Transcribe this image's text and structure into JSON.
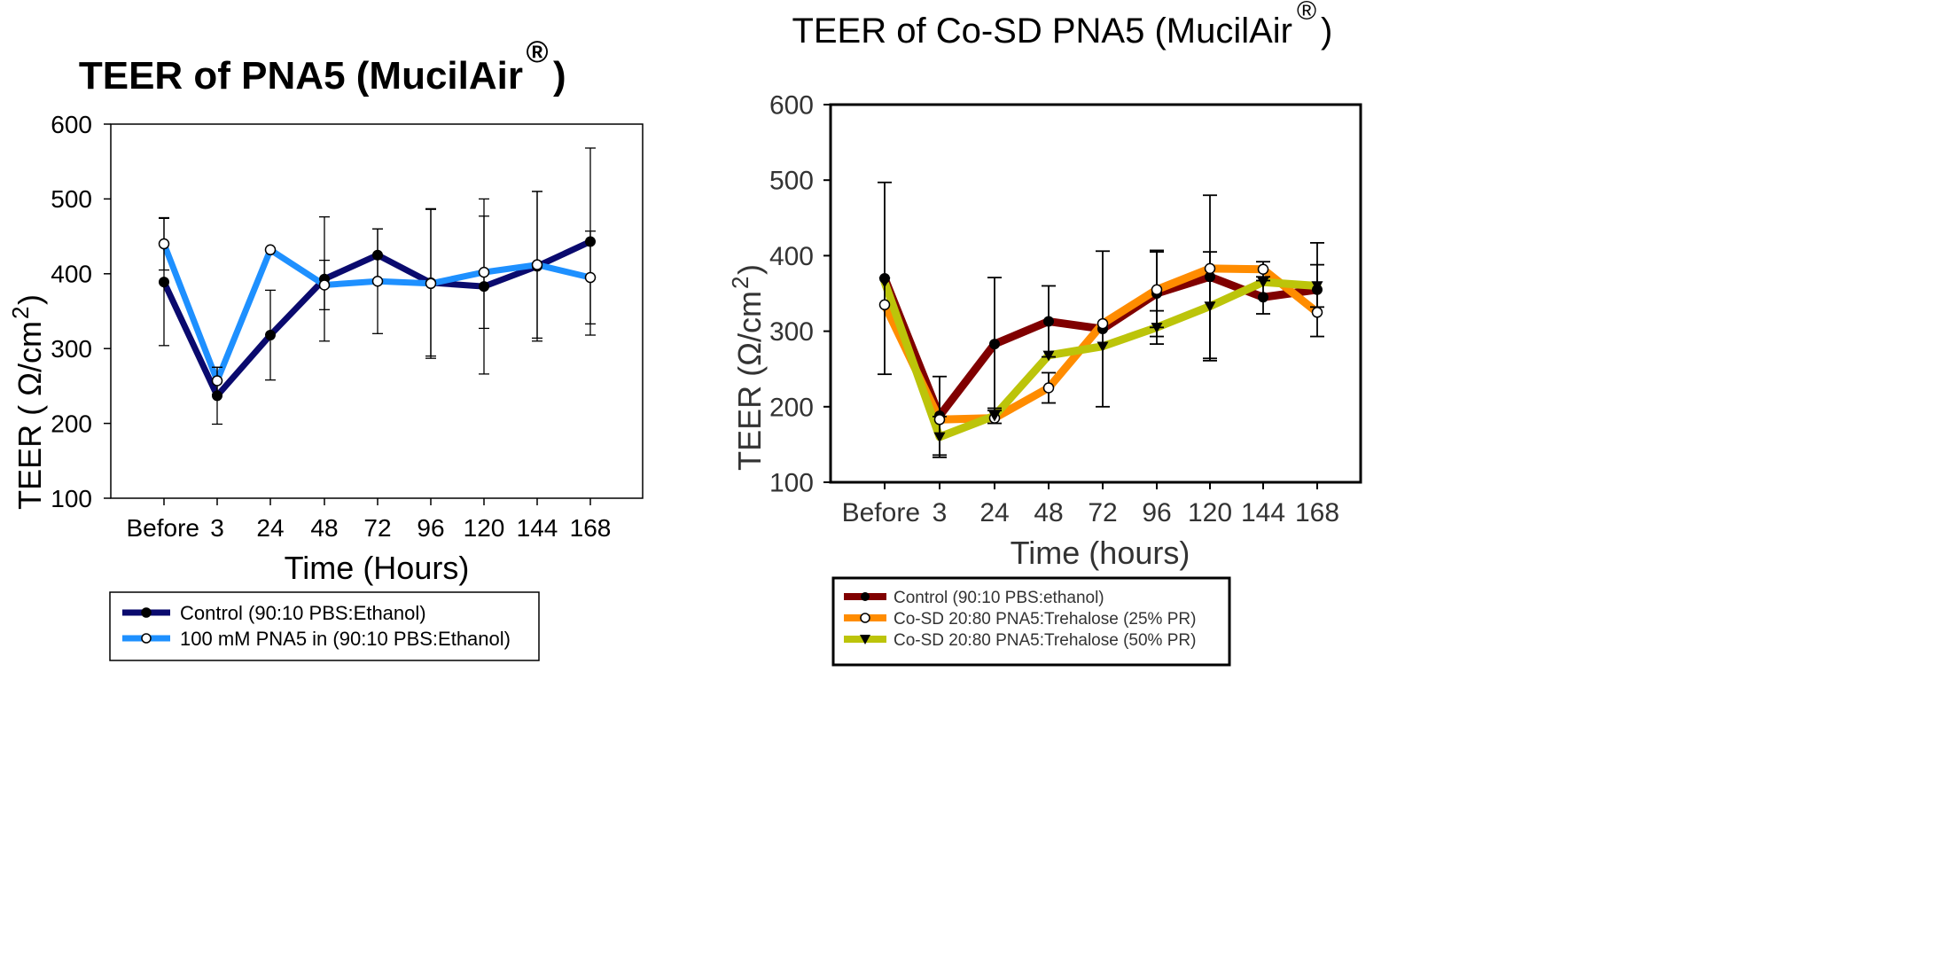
{
  "chart_data": [
    {
      "type": "line",
      "title": "TEER of PNA5 (MucilAir",
      "title_symbol": "®",
      "title_close": ")",
      "xlabel": "Time (Hours)",
      "ylabel_main": "TEER ( Ω/cm",
      "ylabel_sup": "2",
      "ylabel_close": " )",
      "categories": [
        "Before",
        "3",
        "24",
        "48",
        "72",
        "96",
        "120",
        "144",
        "168"
      ],
      "yticks": [
        "100",
        "200",
        "300",
        "400",
        "500",
        "600"
      ],
      "ylim": [
        100,
        600
      ],
      "legend_position": "bottom",
      "series": [
        {
          "name": "Control (90:10 PBS:Ethanol)",
          "color": "#0a0a6e",
          "marker": "filled-circle",
          "values": [
            389,
            237,
            318,
            393,
            425,
            388,
            383,
            410,
            443
          ],
          "errors": [
            85,
            38,
            60,
            83,
            35,
            98,
            117,
            100,
            125
          ]
        },
        {
          "name": "100 mM PNA5 in (90:10 PBS:Ethanol)",
          "color": "#1e90ff",
          "marker": "open-circle",
          "values": [
            440,
            257,
            432,
            385,
            390,
            387,
            402,
            412,
            395
          ],
          "errors": [
            35,
            18,
            0,
            33,
            70,
            100,
            75,
            98,
            62
          ]
        }
      ]
    },
    {
      "type": "line",
      "title": "TEER of Co-SD PNA5 (MucilAir",
      "title_symbol": "®",
      "title_close": ")",
      "xlabel": "Time (hours)",
      "ylabel_main": "TEER (Ω/cm",
      "ylabel_sup": "2",
      "ylabel_close": ")",
      "categories": [
        "Before",
        "3",
        "24",
        "48",
        "72",
        "96",
        "120",
        "144",
        "168"
      ],
      "yticks": [
        "100",
        "200",
        "300",
        "400",
        "500",
        "600"
      ],
      "ylim": [
        100,
        600
      ],
      "legend_position": "bottom",
      "series": [
        {
          "name": "Control (90:10 PBS:ethanol)",
          "color": "#800000",
          "marker": "filled-circle",
          "values": [
            370,
            188,
            283,
            313,
            303,
            350,
            372,
            345,
            355
          ],
          "errors": [
            127,
            52,
            88,
            47,
            103,
            57,
            108,
            22,
            62
          ]
        },
        {
          "name": "Co-SD 20:80 PNA5:Trehalose (25% PR)",
          "color": "#ff8c00",
          "marker": "open-circle",
          "values": [
            335,
            183,
            185,
            225,
            310,
            355,
            383,
            382,
            325
          ],
          "errors": [
            0,
            0,
            0,
            20,
            0,
            50,
            0,
            10,
            0
          ]
        },
        {
          "name": "Co-SD 20:80 PNA5:Trehalose (50% PR)",
          "color": "#bcc40a",
          "marker": "filled-triangle-down",
          "values": [
            365,
            160,
            188,
            268,
            280,
            305,
            333,
            365,
            360
          ],
          "errors": [
            0,
            27,
            10,
            0,
            0,
            22,
            72,
            0,
            28
          ]
        }
      ]
    }
  ]
}
